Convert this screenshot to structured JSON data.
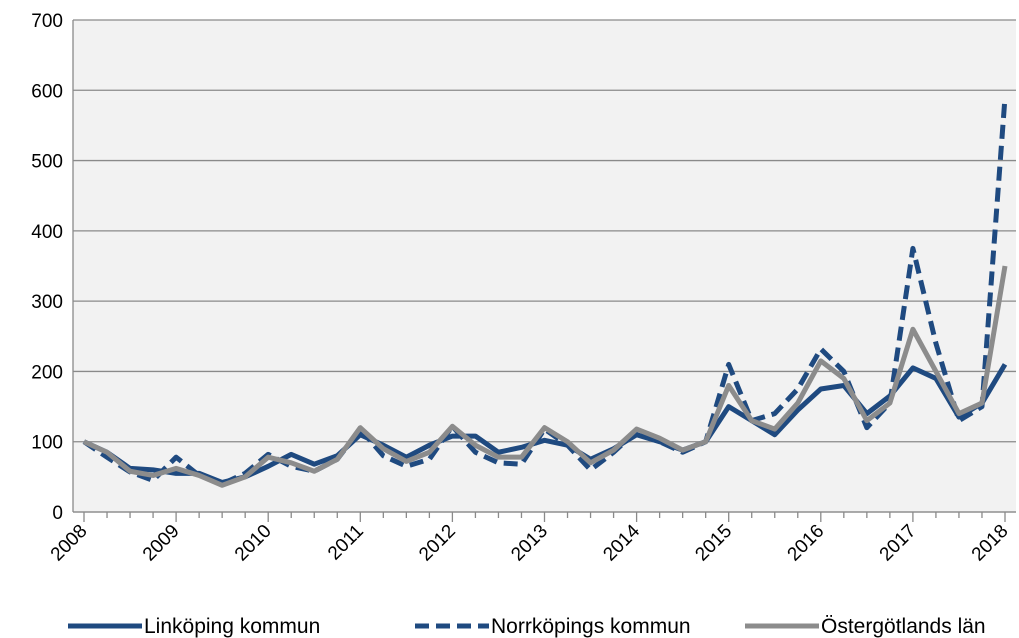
{
  "chart_data": {
    "type": "line",
    "categories": [
      "2008",
      null,
      null,
      null,
      "2009",
      null,
      null,
      null,
      "2010",
      null,
      null,
      null,
      "2011",
      null,
      null,
      null,
      "2012",
      null,
      null,
      null,
      "2013",
      null,
      null,
      null,
      "2014",
      null,
      null,
      null,
      "2015",
      null,
      null,
      null,
      "2016",
      null,
      null,
      null,
      "2017",
      null,
      null,
      null,
      "2018"
    ],
    "series": [
      {
        "name": "Linköping kommun",
        "color": "#1f4a80",
        "dash": false,
        "values": [
          100,
          85,
          62,
          60,
          55,
          55,
          42,
          50,
          65,
          82,
          68,
          80,
          110,
          95,
          78,
          95,
          108,
          108,
          85,
          92,
          102,
          95,
          75,
          90,
          110,
          100,
          88,
          100,
          150,
          130,
          110,
          145,
          175,
          180,
          140,
          165,
          205,
          190,
          135,
          155,
          210
        ]
      },
      {
        "name": "Norrköpings kommun",
        "color": "#1f4a80",
        "dash": true,
        "values": [
          100,
          78,
          57,
          45,
          78,
          52,
          40,
          55,
          82,
          65,
          58,
          75,
          118,
          80,
          65,
          75,
          122,
          85,
          70,
          68,
          118,
          95,
          60,
          85,
          115,
          100,
          85,
          100,
          210,
          130,
          140,
          175,
          232,
          200,
          120,
          155,
          375,
          240,
          130,
          150,
          590
        ]
      },
      {
        "name": "Östergötlands län",
        "color": "#8c8c8c",
        "dash": false,
        "values": [
          100,
          85,
          58,
          52,
          62,
          52,
          38,
          50,
          78,
          70,
          58,
          75,
          120,
          90,
          72,
          85,
          122,
          95,
          78,
          78,
          120,
          100,
          70,
          88,
          118,
          105,
          88,
          100,
          180,
          130,
          118,
          155,
          215,
          190,
          130,
          155,
          260,
          200,
          140,
          155,
          350
        ]
      }
    ],
    "ylim": [
      0,
      700
    ],
    "yticks": [
      0,
      100,
      200,
      300,
      400,
      500,
      600,
      700
    ],
    "grid": true
  }
}
